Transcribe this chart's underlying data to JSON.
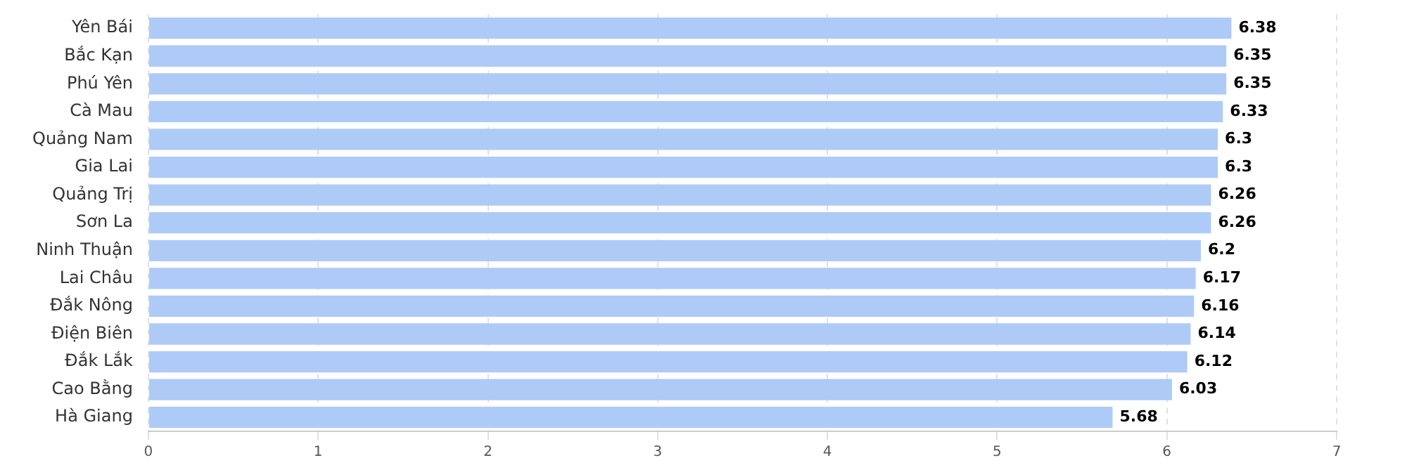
{
  "chart_data": {
    "type": "bar",
    "orientation": "horizontal",
    "categories": [
      "Yên Bái",
      "Bắc Kạn",
      "Phú Yên",
      "Cà Mau",
      "Quảng Nam",
      "Gia Lai",
      "Quảng Trị",
      "Sơn La",
      "Ninh Thuận",
      "Lai Châu",
      "Đắk Nông",
      "Điện Biên",
      "Đắk Lắk",
      "Cao Bằng",
      "Hà Giang"
    ],
    "values": [
      6.38,
      6.35,
      6.35,
      6.33,
      6.3,
      6.3,
      6.26,
      6.26,
      6.2,
      6.17,
      6.16,
      6.14,
      6.12,
      6.03,
      5.68
    ],
    "color": "#aecbf7",
    "xlim": [
      0,
      7
    ],
    "xticks": [
      0,
      1,
      2,
      3,
      4,
      5,
      6,
      7
    ],
    "grid": "x",
    "data_labels": true,
    "legend": false
  }
}
